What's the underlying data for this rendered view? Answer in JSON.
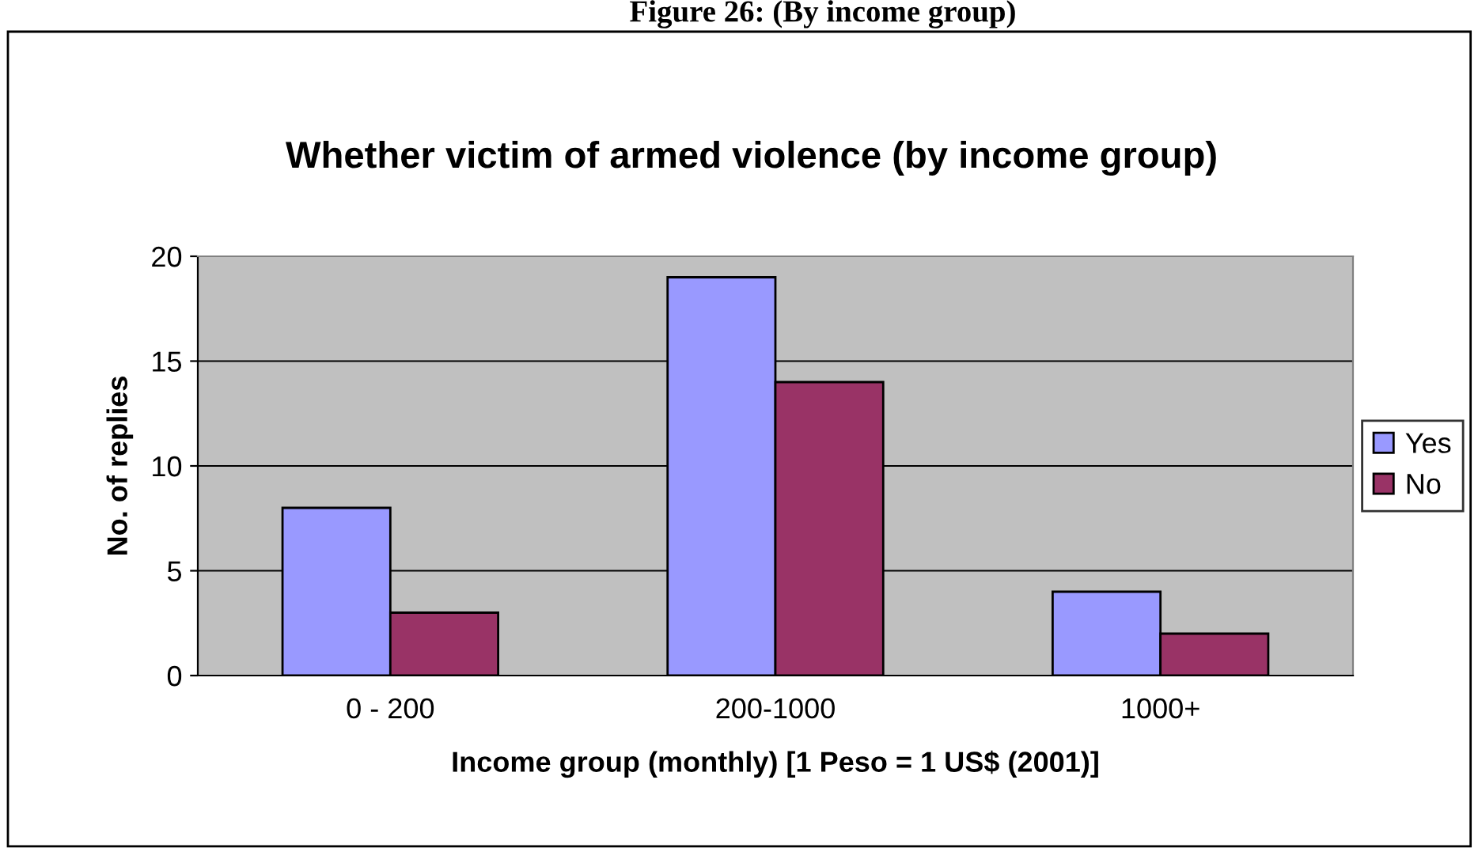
{
  "chart_data": {
    "type": "bar",
    "title": "Whether victim of armed violence (by income group)",
    "annotations": [
      "Figure 26: (By income group)"
    ],
    "xlabel": "Income group (monthly) [1 Peso = 1 US$ (2001)]",
    "ylabel": "No. of replies",
    "categories": [
      "0 - 200",
      "200-1000",
      "1000+"
    ],
    "series": [
      {
        "name": "Yes",
        "color": "#9999ff",
        "values": [
          8,
          19,
          4
        ]
      },
      {
        "name": "No",
        "color": "#993366",
        "values": [
          3,
          14,
          2
        ]
      }
    ],
    "ylim": [
      0,
      20
    ],
    "yticks": [
      0,
      5,
      10,
      15,
      20
    ],
    "grid": "y",
    "legend": "right"
  }
}
